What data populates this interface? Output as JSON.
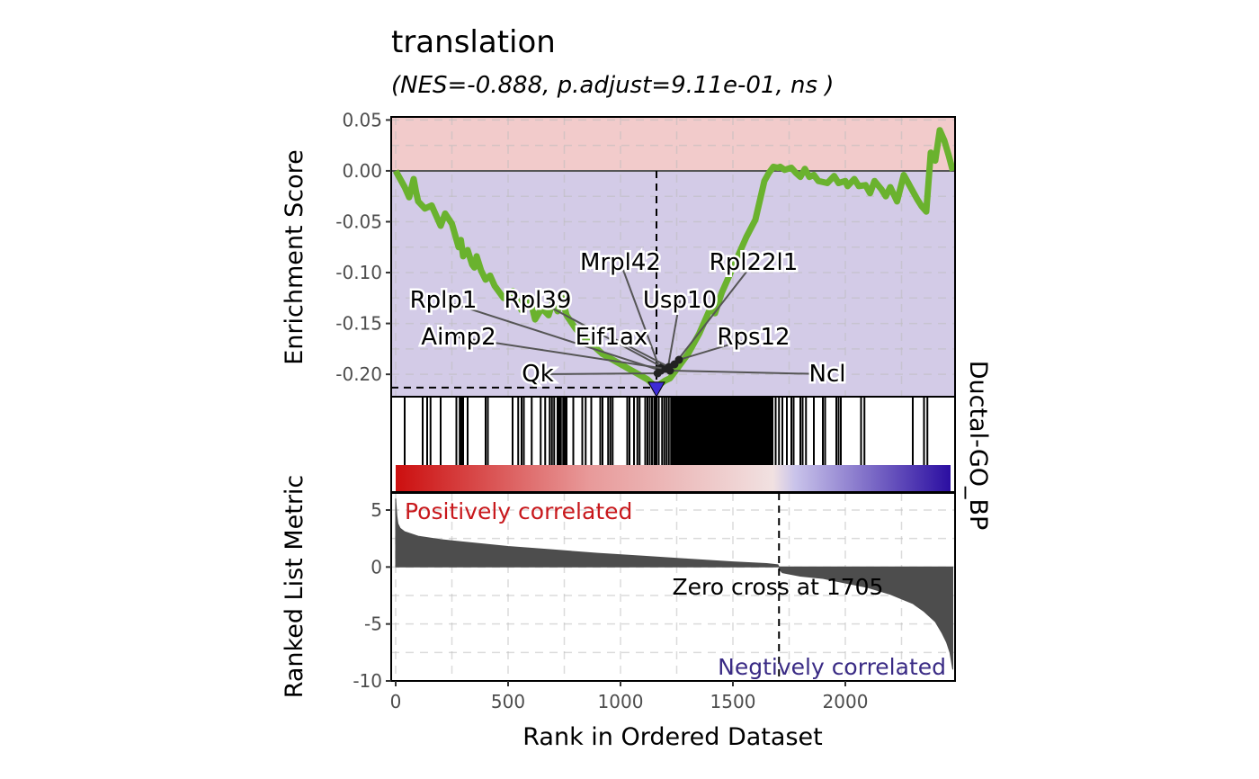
{
  "chart_data": {
    "type": "line",
    "title": "translation",
    "subtitle": "(NES=-0.888, p.adjust=9.11e-01, ns  )",
    "strip_label": "Ductal-GO_BP",
    "xlabel": "Rank in Ordered Dataset",
    "xlim": [
      0,
      2480
    ],
    "x_ticks": [
      0,
      500,
      1000,
      1500,
      2000
    ],
    "x_tick_labels": [
      "0",
      "500",
      "1000",
      "1500",
      "2000"
    ],
    "grid": true,
    "enrichment": {
      "ylabel": "Enrichment Score",
      "ylim": [
        -0.222,
        0.053
      ],
      "y_ticks": [
        0.05,
        0.0,
        -0.05,
        -0.1,
        -0.15,
        -0.2
      ],
      "y_tick_labels": [
        "0.05",
        "0.00",
        "-0.05",
        "-0.10",
        "-0.15",
        "-0.20"
      ],
      "positive_band_color": "#f2cbcb",
      "negative_band_color": "#d3cbe7",
      "line_color": "#6ab22e",
      "peak_rank": 1160,
      "peak_es": -0.213,
      "peak_marker_color": "#3d2bd6",
      "x": [
        0,
        40,
        60,
        80,
        90,
        100,
        130,
        160,
        200,
        220,
        250,
        280,
        290,
        300,
        320,
        340,
        350,
        360,
        380,
        400,
        420,
        440,
        480,
        520,
        560,
        600,
        620,
        650,
        680,
        700,
        720,
        740,
        760,
        800,
        840,
        880,
        920,
        960,
        1000,
        1040,
        1080,
        1120,
        1160,
        1180,
        1200,
        1220,
        1250,
        1280,
        1300,
        1320,
        1350,
        1380,
        1400,
        1420,
        1450,
        1480,
        1520,
        1560,
        1600,
        1640,
        1660,
        1680,
        1700,
        1710,
        1730,
        1760,
        1780,
        1800,
        1820,
        1840,
        1860,
        1880,
        1920,
        1950,
        1970,
        2000,
        2010,
        2040,
        2060,
        2090,
        2110,
        2130,
        2160,
        2180,
        2200,
        2230,
        2260,
        2280,
        2300,
        2320,
        2340,
        2360,
        2380,
        2400,
        2420,
        2440,
        2460,
        2478
      ],
      "y": [
        0.0,
        -0.016,
        -0.026,
        -0.008,
        -0.02,
        -0.03,
        -0.037,
        -0.034,
        -0.054,
        -0.042,
        -0.052,
        -0.075,
        -0.068,
        -0.084,
        -0.078,
        -0.092,
        -0.095,
        -0.084,
        -0.098,
        -0.107,
        -0.103,
        -0.113,
        -0.125,
        -0.118,
        -0.137,
        -0.128,
        -0.146,
        -0.135,
        -0.142,
        -0.128,
        -0.138,
        -0.125,
        -0.142,
        -0.155,
        -0.165,
        -0.172,
        -0.18,
        -0.185,
        -0.19,
        -0.195,
        -0.2,
        -0.205,
        -0.213,
        -0.209,
        -0.206,
        -0.204,
        -0.195,
        -0.186,
        -0.18,
        -0.172,
        -0.16,
        -0.145,
        -0.135,
        -0.14,
        -0.12,
        -0.105,
        -0.085,
        -0.065,
        -0.048,
        -0.01,
        -0.002,
        0.004,
        0.003,
        0.004,
        0.001,
        0.003,
        -0.002,
        -0.006,
        0.002,
        -0.006,
        -0.004,
        -0.01,
        -0.012,
        -0.005,
        -0.012,
        -0.01,
        -0.015,
        -0.008,
        -0.015,
        -0.014,
        -0.022,
        -0.01,
        -0.018,
        -0.025,
        -0.016,
        -0.03,
        -0.004,
        -0.012,
        -0.02,
        -0.028,
        -0.035,
        -0.04,
        0.018,
        0.01,
        0.04,
        0.03,
        0.015,
        0.0
      ],
      "gene_labels": [
        "Rplp1",
        "Rpl39",
        "Mrpl42",
        "Rpl22l1",
        "Usp10",
        "Aimp2",
        "Eif1ax",
        "Rps12",
        "Qk",
        "Ncl"
      ],
      "vline_rank": 1160
    },
    "hits": [
      40,
      120,
      140,
      155,
      200,
      270,
      285,
      290,
      295,
      300,
      320,
      400,
      410,
      520,
      545,
      560,
      570,
      605,
      645,
      665,
      685,
      695,
      705,
      720,
      728,
      735,
      745,
      752,
      760,
      790,
      830,
      845,
      870,
      910,
      920,
      945,
      955,
      965,
      1030,
      1040,
      1060,
      1075,
      1085,
      1110,
      1120,
      1130,
      1140,
      1150,
      1155,
      1160,
      1170,
      1185,
      1195,
      1205,
      1215,
      1225,
      1232,
      1240,
      1248,
      1255,
      1262,
      1270,
      1278,
      1286,
      1294,
      1300,
      1308,
      1316,
      1324,
      1332,
      1340,
      1348,
      1356,
      1364,
      1372,
      1380,
      1388,
      1396,
      1404,
      1412,
      1420,
      1428,
      1436,
      1444,
      1452,
      1460,
      1468,
      1476,
      1484,
      1492,
      1500,
      1508,
      1516,
      1524,
      1532,
      1540,
      1548,
      1556,
      1564,
      1572,
      1580,
      1588,
      1596,
      1604,
      1612,
      1620,
      1628,
      1636,
      1644,
      1652,
      1660,
      1668,
      1676,
      1690,
      1705,
      1720,
      1740,
      1760,
      1770,
      1800,
      1810,
      1825,
      1860,
      1900,
      1910,
      1960,
      1970,
      1980,
      2070,
      2085,
      2300,
      2350,
      2365
    ],
    "ranked_metric": {
      "ylabel": "Ranked List Metric",
      "ylim": [
        -10,
        6.5
      ],
      "y_ticks": [
        5,
        0,
        -5,
        -10
      ],
      "y_tick_labels": [
        "5",
        "0",
        "-5",
        "-10"
      ],
      "fill_color": "#4d4d4d",
      "x": [
        0,
        5,
        10,
        20,
        40,
        70,
        100,
        200,
        300,
        500,
        700,
        900,
        1100,
        1300,
        1500,
        1650,
        1700,
        1705,
        1710,
        1720,
        1800,
        1900,
        2000,
        2100,
        2200,
        2300,
        2350,
        2400,
        2430,
        2450,
        2465,
        2478
      ],
      "y": [
        6.0,
        4.5,
        3.8,
        3.4,
        3.1,
        2.9,
        2.7,
        2.4,
        2.2,
        1.8,
        1.5,
        1.2,
        0.95,
        0.7,
        0.45,
        0.3,
        0.2,
        0.0,
        -0.3,
        -0.5,
        -0.8,
        -1.0,
        -1.4,
        -1.8,
        -2.4,
        -3.2,
        -3.9,
        -4.8,
        -5.8,
        -6.6,
        -7.5,
        -9.0
      ],
      "zero_cross": 1705,
      "zero_cross_label": "Zero cross at 1705",
      "positive_label": "Positively correlated",
      "negative_label": "Negtively correlated",
      "positive_label_color": "#c8181c",
      "negative_label_color": "#3a2b85"
    },
    "color_bar": {
      "stops": [
        "#cc0f0f",
        "#e89a9a",
        "#f1e1e1",
        "#c9c3ea",
        "#2b0ea1"
      ]
    }
  }
}
